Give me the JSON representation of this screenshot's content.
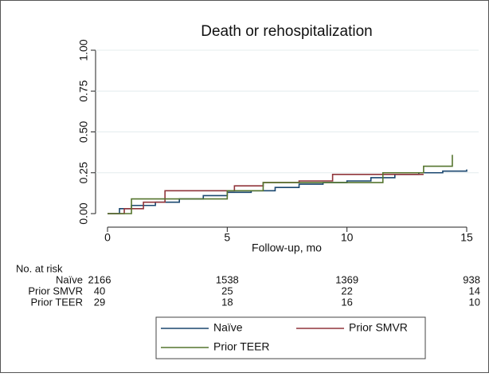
{
  "chart_data": {
    "type": "line",
    "drawstyle": "steps-post",
    "title": "Death or rehospitalization",
    "x_label": "Follow-up, mo",
    "xlim": [
      0,
      15
    ],
    "xticks": [
      0,
      5,
      10,
      15
    ],
    "ylim": [
      0,
      1
    ],
    "yticks": [
      {
        "value": 0,
        "label": "0.00"
      },
      {
        "value": 0.25,
        "label": "0.25"
      },
      {
        "value": 0.5,
        "label": "0.50"
      },
      {
        "value": 0.75,
        "label": "0.75"
      },
      {
        "value": 1,
        "label": "1.00"
      }
    ],
    "grid": true,
    "series": [
      {
        "name": "Naïve",
        "color": "#1a476f",
        "x": [
          0,
          0.5,
          1,
          2,
          3,
          4,
          5,
          6,
          7,
          8,
          9,
          10,
          11,
          12,
          13,
          14,
          15
        ],
        "values": [
          0,
          0.03,
          0.05,
          0.07,
          0.09,
          0.11,
          0.13,
          0.14,
          0.16,
          0.18,
          0.19,
          0.2,
          0.22,
          0.24,
          0.25,
          0.26,
          0.27
        ]
      },
      {
        "name": "Prior SMVR",
        "color": "#90353b",
        "x": [
          0,
          0.7,
          1.5,
          2.4,
          5.3,
          6.5,
          8,
          9.4,
          11.5,
          13.2
        ],
        "values": [
          0,
          0.03,
          0.07,
          0.14,
          0.17,
          0.19,
          0.2,
          0.24,
          0.24,
          0.24
        ]
      },
      {
        "name": "Prior TEER",
        "color": "#55752f",
        "x": [
          0,
          1,
          5,
          6.5,
          8,
          11.5,
          13.2,
          14.4
        ],
        "values": [
          0,
          0.09,
          0.14,
          0.19,
          0.19,
          0.25,
          0.29,
          0.36
        ]
      }
    ],
    "risk_table": {
      "title": "No. at risk",
      "rows": [
        {
          "label": "Naïve",
          "counts": [
            2166,
            1538,
            1369,
            938
          ]
        },
        {
          "label": "Prior SMVR",
          "counts": [
            40,
            25,
            22,
            14
          ]
        },
        {
          "label": "Prior TEER",
          "counts": [
            29,
            18,
            16,
            10
          ]
        }
      ]
    }
  }
}
